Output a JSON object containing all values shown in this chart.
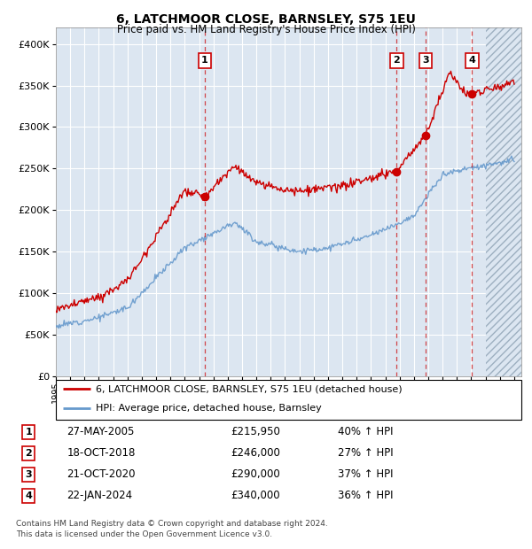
{
  "title": "6, LATCHMOOR CLOSE, BARNSLEY, S75 1EU",
  "subtitle": "Price paid vs. HM Land Registry's House Price Index (HPI)",
  "ytick_values": [
    0,
    50000,
    100000,
    150000,
    200000,
    250000,
    300000,
    350000,
    400000
  ],
  "ylim": [
    0,
    420000
  ],
  "xlim_start": 1995.0,
  "xlim_end": 2027.5,
  "future_start": 2025.0,
  "sale_years": [
    2005.4,
    2018.8,
    2020.8,
    2024.06
  ],
  "sale_prices": [
    215950,
    246000,
    290000,
    340000
  ],
  "sale_labels": [
    "1",
    "2",
    "3",
    "4"
  ],
  "sale_info": [
    {
      "label": "1",
      "date": "27-MAY-2005",
      "price": "£215,950",
      "hpi": "40% ↑ HPI"
    },
    {
      "label": "2",
      "date": "18-OCT-2018",
      "price": "£246,000",
      "hpi": "27% ↑ HPI"
    },
    {
      "label": "3",
      "date": "21-OCT-2020",
      "price": "£290,000",
      "hpi": "37% ↑ HPI"
    },
    {
      "label": "4",
      "date": "22-JAN-2024",
      "price": "£340,000",
      "hpi": "36% ↑ HPI"
    }
  ],
  "legend_entries": [
    {
      "label": "6, LATCHMOOR CLOSE, BARNSLEY, S75 1EU (detached house)",
      "color": "#cc0000"
    },
    {
      "label": "HPI: Average price, detached house, Barnsley",
      "color": "#6699cc"
    }
  ],
  "footer": [
    "Contains HM Land Registry data © Crown copyright and database right 2024.",
    "This data is licensed under the Open Government Licence v3.0."
  ],
  "background_color": "#dce6f1",
  "grid_color": "#ffffff",
  "red_line_color": "#cc0000",
  "blue_line_color": "#6699cc"
}
